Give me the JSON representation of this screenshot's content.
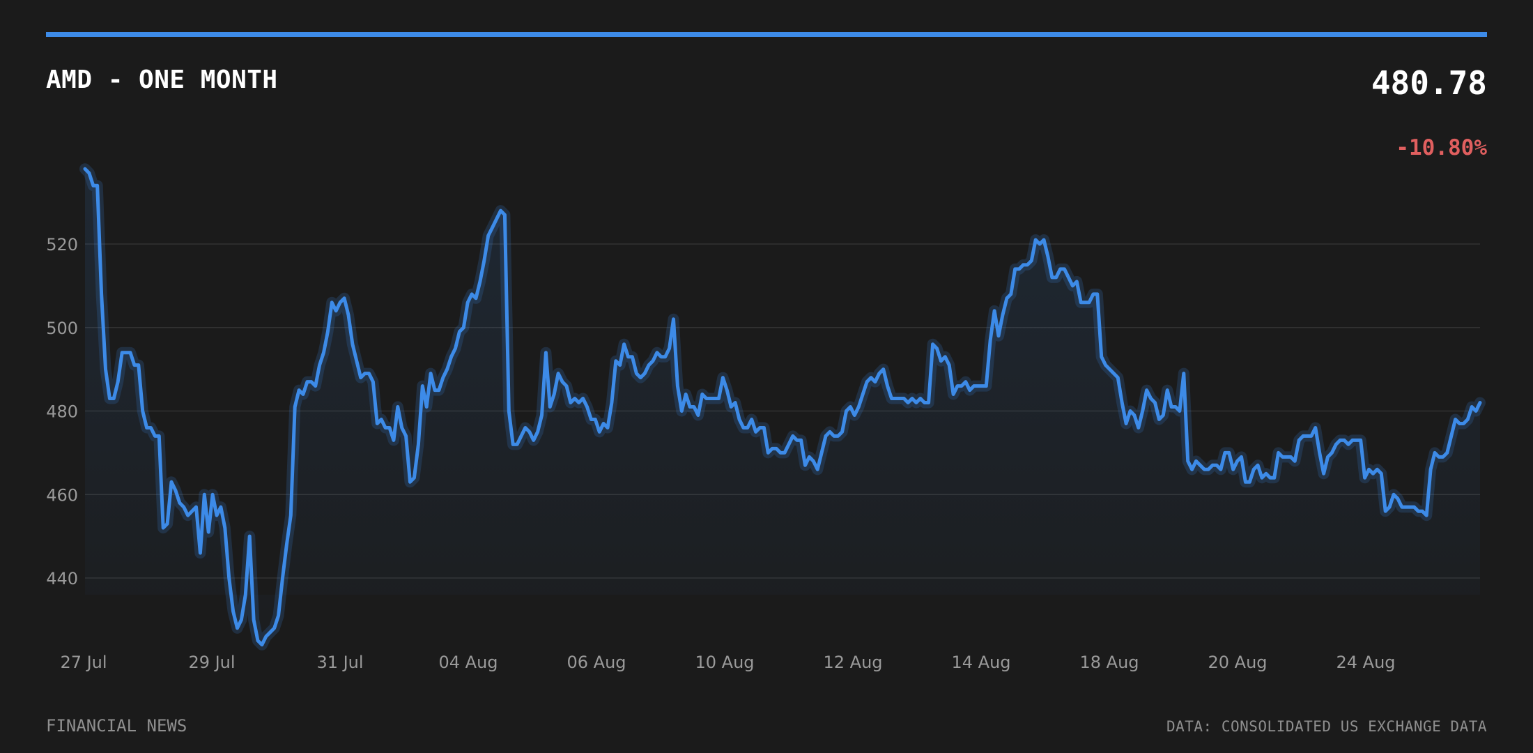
{
  "header": {
    "title": "AMD - ONE MONTH",
    "price": "480.78",
    "change": "-10.80%"
  },
  "footer": {
    "left": "FINANCIAL NEWS",
    "right": "DATA: CONSOLIDATED US EXCHANGE DATA"
  },
  "colors": {
    "accent": "#3d8be8",
    "negative": "#e05f5f",
    "background": "#1b1b1b",
    "grid": "#333333"
  },
  "chart_data": {
    "type": "area",
    "title": "AMD - ONE MONTH",
    "xlabel": "",
    "ylabel": "",
    "ylim": [
      424,
      538
    ],
    "y_ticks": [
      440,
      460,
      480,
      500,
      520
    ],
    "x_ticks": [
      "27 Jul",
      "29 Jul",
      "31 Jul",
      "04 Aug",
      "06 Aug",
      "10 Aug",
      "12 Aug",
      "14 Aug",
      "18 Aug",
      "20 Aug",
      "24 Aug"
    ],
    "grid": true,
    "legend": "none",
    "series": [
      {
        "values": [
          538,
          537,
          534,
          534,
          508,
          490,
          483,
          483,
          487,
          494,
          494,
          494,
          491,
          491,
          480,
          476,
          476,
          474,
          474,
          452,
          453,
          463,
          461,
          458,
          457,
          455,
          456,
          457,
          446,
          460,
          451,
          460,
          455,
          457,
          452,
          440,
          432,
          428,
          430,
          436,
          450,
          430,
          425,
          424,
          426,
          427,
          428,
          431,
          440,
          448,
          455,
          481,
          485,
          484,
          487,
          487,
          486,
          491,
          494,
          499,
          506,
          504,
          506,
          507,
          503,
          496,
          492,
          488,
          489,
          489,
          487,
          477,
          478,
          476,
          476,
          473,
          481,
          476,
          474,
          463,
          464,
          472,
          486,
          481,
          489,
          485,
          485,
          488,
          490,
          493,
          495,
          499,
          500,
          506,
          508,
          507,
          511,
          516,
          522,
          524,
          526,
          528,
          527,
          480,
          472,
          472,
          474,
          476,
          475,
          473,
          475,
          479,
          494,
          481,
          484,
          489,
          487,
          486,
          482,
          483,
          482,
          483,
          481,
          478,
          478,
          475,
          477,
          476,
          482,
          492,
          491,
          496,
          493,
          493,
          489,
          488,
          489,
          491,
          492,
          494,
          493,
          493,
          495,
          502,
          486,
          480,
          484,
          481,
          481,
          479,
          484,
          483,
          483,
          483,
          483,
          488,
          485,
          481,
          482,
          478,
          476,
          476,
          478,
          475,
          476,
          476,
          470,
          471,
          471,
          470,
          470,
          472,
          474,
          473,
          473,
          467,
          469,
          468,
          466,
          470,
          474,
          475,
          474,
          474,
          475,
          480,
          481,
          479,
          481,
          484,
          487,
          488,
          487,
          489,
          490,
          486,
          483,
          483,
          483,
          483,
          482,
          483,
          482,
          483,
          482,
          482,
          496,
          495,
          492,
          493,
          491,
          484,
          486,
          486,
          487,
          485,
          486,
          486,
          486,
          486,
          497,
          504,
          498,
          503,
          507,
          508,
          514,
          514,
          515,
          515,
          516,
          521,
          520,
          521,
          517,
          512,
          512,
          514,
          514,
          512,
          510,
          511,
          506,
          506,
          506,
          508,
          508,
          493,
          491,
          490,
          489,
          488,
          482,
          477,
          480,
          479,
          476,
          480,
          485,
          483,
          482,
          478,
          479,
          485,
          481,
          481,
          480,
          489,
          468,
          466,
          468,
          467,
          466,
          466,
          467,
          467,
          466,
          470,
          470,
          466,
          468,
          469,
          463,
          463,
          466,
          467,
          464,
          465,
          464,
          464,
          470,
          469,
          469,
          469,
          468,
          473,
          474,
          474,
          474,
          476,
          470,
          465,
          469,
          470,
          472,
          473,
          473,
          472,
          473,
          473,
          473,
          464,
          466,
          465,
          466,
          465,
          456,
          457,
          460,
          459,
          457,
          457,
          457,
          457,
          456,
          456,
          455,
          466,
          470,
          469,
          469,
          470,
          474,
          478,
          477,
          477,
          478,
          481,
          480,
          482
        ]
      }
    ]
  }
}
